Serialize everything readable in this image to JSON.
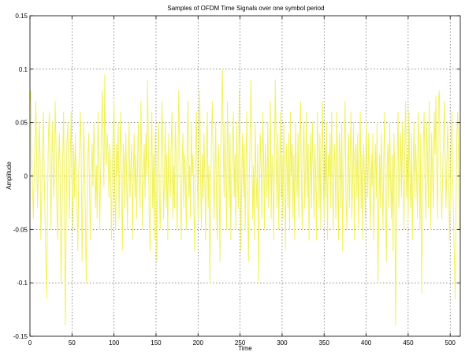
{
  "chart_data": {
    "type": "line",
    "title": "Samples of OFDM Time Signals over one symbol period",
    "xlabel": "Time",
    "ylabel": "Amplitude",
    "xlim": [
      0,
      512
    ],
    "ylim": [
      -0.15,
      0.15
    ],
    "grid": true,
    "x_ticks": [
      0,
      50,
      100,
      150,
      200,
      250,
      300,
      350,
      400,
      450,
      500
    ],
    "x_tick_labels": [
      "0",
      "50",
      "100",
      "150",
      "200",
      "250",
      "300",
      "350",
      "400",
      "450",
      "500"
    ],
    "y_ticks": [
      -0.15,
      -0.1,
      -0.05,
      0,
      0.05,
      0.1,
      0.15
    ],
    "y_tick_labels": [
      "-0.15",
      "-0.1",
      "-0.05",
      "0",
      "0.05",
      "0.1",
      "0.15"
    ],
    "series": [
      {
        "color": "#f2f25a",
        "sample_count": 512,
        "x_start": 0,
        "x_step": 1,
        "y": [
          0.07,
          0.08,
          0.02,
          -0.01,
          -0.04,
          0.0,
          0.03,
          0.07,
          0.02,
          -0.03,
          0.01,
          0.05,
          0.02,
          -0.06,
          -0.02,
          0.03,
          0.06,
          0.0,
          -0.04,
          -0.08,
          -0.115,
          -0.02,
          0.04,
          0.06,
          0.01,
          -0.05,
          0.02,
          0.05,
          -0.02,
          0.0,
          0.07,
          0.03,
          -0.03,
          -0.06,
          0.01,
          0.04,
          0.0,
          -0.1,
          -0.05,
          0.02,
          0.06,
          -0.02,
          -0.14,
          -0.05,
          0.03,
          0.05,
          0.0,
          -0.04,
          0.02,
          0.06,
          -0.01,
          -0.05,
          0.03,
          -0.02,
          0.04,
          0.0,
          -0.03,
          -0.07,
          0.0,
          0.03,
          0.06,
          0.02,
          -0.08,
          -0.02,
          0.05,
          0.01,
          -0.04,
          -0.1,
          -0.03,
          0.02,
          0.04,
          -0.02,
          -0.06,
          0.0,
          0.03,
          -0.01,
          0.05,
          0.02,
          -0.03,
          0.01,
          -0.04,
          0.06,
          0.02,
          -0.05,
          0.0,
          0.04,
          0.08,
          0.03,
          -0.01,
          0.095,
          0.02,
          0.01,
          0.04,
          0.02,
          -0.02,
          0.03,
          0.0,
          -0.06,
          0.01,
          0.04,
          0.07,
          -0.02,
          -0.05,
          0.03,
          0.0,
          0.05,
          -0.04,
          0.02,
          0.06,
          -0.01,
          -0.07,
          0.03,
          0.01,
          -0.03,
          0.04,
          0.0,
          -0.05,
          0.02,
          0.05,
          -0.02,
          0.01,
          0.03,
          -0.06,
          0.0,
          0.04,
          -0.02,
          0.02,
          -0.04,
          0.01,
          0.05,
          0.0,
          -0.03,
          0.07,
          0.02,
          -0.05,
          0.01,
          0.03,
          -0.02,
          0.04,
          0.0,
          0.09,
          0.02,
          -0.04,
          -0.07,
          0.01,
          0.06,
          -0.03,
          0.02,
          -0.06,
          0.04,
          0.0,
          -0.08,
          0.03,
          0.05,
          -0.02,
          -0.05,
          0.01,
          0.07,
          0.03,
          -0.04,
          0.0,
          0.05,
          -0.03,
          0.02,
          -0.06,
          0.04,
          0.0,
          -0.02,
          0.03,
          0.06,
          -0.04,
          0.01,
          -0.03,
          0.05,
          0.02,
          -0.05,
          0.0,
          0.08,
          0.03,
          -0.02,
          -0.06,
          0.01,
          0.04,
          -0.03,
          0.02,
          0.0,
          -0.05,
          0.03,
          0.07,
          -0.02,
          0.01,
          -0.04,
          0.05,
          0.0,
          0.02,
          -0.03,
          -0.07,
          0.02,
          0.06,
          0.0,
          -0.04,
          0.03,
          0.08,
          0.0,
          -0.05,
          0.02,
          -0.02,
          0.04,
          0.0,
          -0.06,
          0.03,
          0.06,
          -0.03,
          0.01,
          -0.1,
          -0.02,
          0.04,
          0.07,
          0.02,
          -0.04,
          0.0,
          0.05,
          -0.03,
          -0.06,
          0.03,
          0.01,
          -0.08,
          0.02,
          0.06,
          0.1,
          0.03,
          -0.02,
          0.05,
          0.0,
          -0.05,
          0.07,
          0.02,
          -0.03,
          0.04,
          -0.06,
          0.0,
          0.03,
          0.06,
          -0.02,
          0.02,
          -0.05,
          0.05,
          0.0,
          -0.03,
          0.08,
          0.02,
          -0.07,
          0.0,
          0.04,
          -0.02,
          0.03,
          -0.05,
          0.01,
          0.06,
          -0.03,
          -0.08,
          0.0,
          0.04,
          0.09,
          0.02,
          -0.04,
          0.01,
          -0.06,
          0.05,
          0.0,
          -0.03,
          0.03,
          -0.1,
          -0.02,
          0.04,
          0.01,
          -0.04,
          0.06,
          0.02,
          -0.05,
          0.03,
          0.0,
          -0.02,
          0.05,
          -0.03,
          0.01,
          0.07,
          -0.04,
          0.02,
          0.0,
          -0.06,
          0.03,
          0.09,
          0.01,
          -0.03,
          0.04,
          -0.05,
          0.0,
          0.06,
          -0.02,
          0.02,
          -0.04,
          0.05,
          0.0,
          -0.07,
          0.03,
          0.01,
          -0.03,
          0.04,
          -0.05,
          0.06,
          0.0,
          0.03,
          -0.04,
          0.02,
          -0.06,
          0.05,
          0.0,
          -0.02,
          0.04,
          -0.04,
          0.03,
          0.07,
          -0.01,
          -0.05,
          0.02,
          0.05,
          -0.03,
          0.01,
          0.06,
          -0.02,
          0.03,
          -0.06,
          0.0,
          0.04,
          -0.03,
          0.05,
          0.01,
          -0.04,
          0.03,
          0.0,
          -0.06,
          0.06,
          0.02,
          -0.03,
          0.04,
          -0.05,
          0.01,
          0.07,
          0.0,
          -0.04,
          0.03,
          -0.02,
          0.05,
          -0.06,
          0.02,
          0.0,
          0.04,
          -0.03,
          0.06,
          -0.01,
          -0.05,
          0.03,
          0.01,
          -0.04,
          0.06,
          0.0,
          -0.06,
          0.04,
          0.02,
          -0.03,
          0.05,
          -0.07,
          0.0,
          0.03,
          0.07,
          -0.02,
          -0.05,
          0.01,
          0.04,
          -0.03,
          0.02,
          0.06,
          -0.04,
          0.0,
          0.05,
          -0.06,
          0.02,
          0.03,
          -0.02,
          0.04,
          -0.05,
          0.01,
          0.06,
          -0.03,
          0.02,
          -0.06,
          0.03,
          0.0,
          -0.04,
          0.05,
          0.02,
          -0.02,
          0.04,
          0.0,
          -0.05,
          0.02,
          -0.01,
          0.04,
          -0.06,
          0.0,
          0.03,
          -0.02,
          0.05,
          -0.1,
          -0.04,
          0.02,
          -0.03,
          0.04,
          0.0,
          -0.05,
          0.02,
          0.06,
          -0.02,
          -0.08,
          0.01,
          0.03,
          -0.03,
          0.05,
          0.0,
          -0.04,
          0.02,
          -0.07,
          0.04,
          0.0,
          -0.14,
          -0.05,
          0.02,
          0.06,
          -0.03,
          0.01,
          0.04,
          -0.02,
          0.05,
          0.0,
          -0.05,
          0.03,
          0.07,
          -0.02,
          0.02,
          -0.04,
          0.06,
          0.0,
          -0.03,
          0.04,
          -0.06,
          0.01,
          0.05,
          -0.02,
          0.03,
          0.0,
          -0.04,
          0.06,
          0.02,
          -0.05,
          0.04,
          -0.11,
          -0.03,
          0.03,
          0.06,
          0.0,
          -0.04,
          0.05,
          0.02,
          -0.03,
          0.07,
          0.01,
          -0.05,
          0.04,
          0.0,
          -0.03,
          0.06,
          0.02,
          0.075,
          0.0,
          -0.04
        ]
      }
    ]
  }
}
